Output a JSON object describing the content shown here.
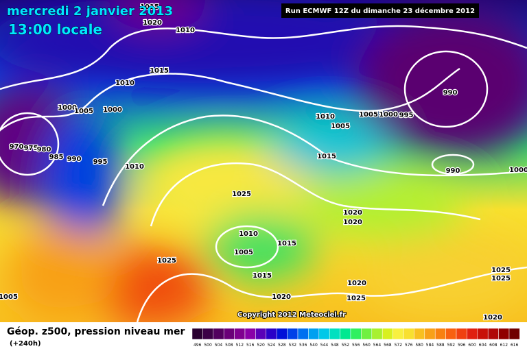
{
  "header": {
    "title": "mercredi 2 janvier 2013",
    "time": "13:00 locale",
    "run": "Run ECMWF 12Z du dimanche 23 décembre 2012"
  },
  "copyright": "Copyright 2012 Meteociel.fr",
  "footer": {
    "field": "Géop. z500, pression niveau mer",
    "lead": "(+240h)"
  },
  "isobar_labels": [
    "1015",
    "1020",
    "1010",
    "1015",
    "1010",
    "1000",
    "1005",
    "1000",
    "970",
    "975",
    "980",
    "985",
    "990",
    "995",
    "1010",
    "1010",
    "1005",
    "1005",
    "1000",
    "995",
    "990",
    "990",
    "1000",
    "1015",
    "1025",
    "1020",
    "1020",
    "1010",
    "1005",
    "1015",
    "1025",
    "1015",
    "1020",
    "1020",
    "1025",
    "1005",
    "1025",
    "1025",
    "1020"
  ],
  "scale": {
    "labels": [
      496,
      500,
      504,
      508,
      512,
      516,
      520,
      524,
      528,
      532,
      536,
      540,
      544,
      548,
      552,
      556,
      560,
      564,
      568,
      572,
      576,
      580,
      584,
      588,
      592,
      596,
      600,
      604,
      608,
      612,
      616
    ],
    "colors": [
      "#2a0030",
      "#3c0046",
      "#52005e",
      "#6a0078",
      "#7f0090",
      "#8a00a8",
      "#5a00b8",
      "#2a00c8",
      "#0010d8",
      "#0040e8",
      "#0070f0",
      "#00a0f0",
      "#00c8e8",
      "#00e0c0",
      "#00e890",
      "#30f060",
      "#70f040",
      "#a8f030",
      "#d8f020",
      "#f8f040",
      "#f8e030",
      "#f8c020",
      "#f8a018",
      "#f88010",
      "#f86010",
      "#f04010",
      "#e02010",
      "#c81008",
      "#b00808",
      "#900000",
      "#700000"
    ]
  }
}
